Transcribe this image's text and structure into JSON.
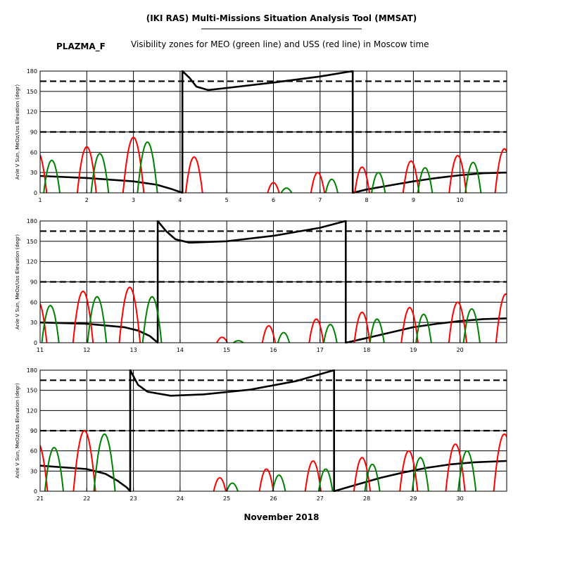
{
  "header": {
    "title": "(IKI RAS) Multi-Missions Situation Analysis Tool (MMSAT)",
    "subtitle": "Visibility zones for MEO (green line) and USS (red line) in Moscow time",
    "mission": "PLAZMA_F",
    "footer": "November 2018"
  },
  "colors": {
    "meo": "#008000",
    "uss": "#ff0000",
    "angle": "#000000",
    "grid": "#000000",
    "background": "#ffffff"
  },
  "chart_data": [
    {
      "type": "line",
      "ylabel": "Anle V Sun, MeOz/Uss Elevation (degr)",
      "xlim": [
        1,
        11
      ],
      "ylim": [
        0,
        180
      ],
      "x_ticks": [
        1,
        2,
        3,
        4,
        5,
        6,
        7,
        8,
        9,
        10
      ],
      "y_ticks": [
        0,
        30,
        60,
        90,
        120,
        150,
        180
      ],
      "reference_lines": [
        90,
        165
      ],
      "series": [
        {
          "key": "angle",
          "color": "#000000",
          "x": [
            1.0,
            2.0,
            3.0,
            3.5,
            3.8,
            4.05,
            4.05,
            4.2,
            4.35,
            4.6,
            5.0,
            6.0,
            7.0,
            7.7,
            7.7,
            8.0,
            8.5,
            9.0,
            9.5,
            10.0,
            10.5,
            11.0
          ],
          "y": [
            25,
            22,
            17,
            12,
            6,
            0,
            180,
            170,
            157,
            152,
            155,
            163,
            172,
            180,
            0,
            5,
            11,
            17,
            22,
            26,
            29,
            30
          ]
        },
        {
          "key": "uss",
          "color": "#ff0000",
          "peaks": [
            [
              0.95,
              60
            ],
            [
              2.0,
              68
            ],
            [
              3.0,
              82
            ],
            [
              4.3,
              53
            ],
            [
              6.0,
              15
            ],
            [
              6.95,
              30
            ],
            [
              7.9,
              38
            ],
            [
              8.95,
              47
            ],
            [
              9.95,
              55
            ],
            [
              10.95,
              65
            ]
          ]
        },
        {
          "key": "meo",
          "color": "#008000",
          "peaks": [
            [
              1.25,
              48
            ],
            [
              2.28,
              58
            ],
            [
              3.3,
              75
            ],
            [
              6.28,
              7
            ],
            [
              7.25,
              20
            ],
            [
              8.25,
              30
            ],
            [
              9.25,
              37
            ],
            [
              10.28,
              45
            ]
          ]
        }
      ]
    },
    {
      "type": "line",
      "ylabel": "Anle V Sun, MeOz/Uss Elevation (degr)",
      "xlim": [
        11,
        21
      ],
      "ylim": [
        0,
        180
      ],
      "x_ticks": [
        11,
        12,
        13,
        14,
        15,
        16,
        17,
        18,
        19,
        20
      ],
      "y_ticks": [
        0,
        30,
        60,
        90,
        120,
        150,
        180
      ],
      "reference_lines": [
        90,
        165
      ],
      "series": [
        {
          "key": "angle",
          "color": "#000000",
          "x": [
            11.0,
            12.0,
            12.8,
            13.1,
            13.35,
            13.52,
            13.52,
            13.7,
            13.9,
            14.2,
            15.0,
            16.0,
            17.0,
            17.55,
            17.55,
            18.0,
            18.5,
            19.0,
            19.5,
            20.0,
            20.5,
            21.0
          ],
          "y": [
            30,
            28,
            23,
            18,
            10,
            0,
            180,
            165,
            153,
            148,
            150,
            158,
            170,
            180,
            0,
            7,
            15,
            23,
            28,
            32,
            35,
            36
          ]
        },
        {
          "key": "uss",
          "color": "#ff0000",
          "peaks": [
            [
              10.95,
              62
            ],
            [
              11.92,
              76
            ],
            [
              12.92,
              82
            ],
            [
              14.9,
              8
            ],
            [
              15.9,
              25
            ],
            [
              16.92,
              35
            ],
            [
              17.9,
              45
            ],
            [
              18.92,
              52
            ],
            [
              19.95,
              60
            ],
            [
              20.98,
              72
            ]
          ]
        },
        {
          "key": "meo",
          "color": "#008000",
          "peaks": [
            [
              11.22,
              55
            ],
            [
              12.22,
              68
            ],
            [
              13.4,
              68
            ],
            [
              15.25,
              3
            ],
            [
              16.22,
              15
            ],
            [
              17.22,
              27
            ],
            [
              18.22,
              35
            ],
            [
              19.22,
              42
            ],
            [
              20.25,
              50
            ]
          ]
        }
      ]
    },
    {
      "type": "line",
      "ylabel": "Anle V Sun, MeOz/Uss Elevation (degr)",
      "xlim": [
        21,
        31
      ],
      "ylim": [
        0,
        180
      ],
      "x_ticks": [
        21,
        22,
        23,
        24,
        25,
        26,
        27,
        28,
        29,
        30
      ],
      "y_ticks": [
        0,
        30,
        60,
        90,
        120,
        150,
        180
      ],
      "reference_lines": [
        90,
        165
      ],
      "series": [
        {
          "key": "angle",
          "color": "#000000",
          "x": [
            21.0,
            22.0,
            22.4,
            22.65,
            22.85,
            22.93,
            22.93,
            23.1,
            23.3,
            23.8,
            24.5,
            25.5,
            26.5,
            27.3,
            27.3,
            27.8,
            28.3,
            28.8,
            29.3,
            29.8,
            30.3,
            31.0
          ],
          "y": [
            38,
            33,
            26,
            16,
            6,
            0,
            180,
            158,
            148,
            142,
            144,
            151,
            164,
            180,
            0,
            10,
            20,
            28,
            35,
            40,
            43,
            45
          ]
        },
        {
          "key": "uss",
          "color": "#ff0000",
          "peaks": [
            [
              20.95,
              72
            ],
            [
              21.95,
              90
            ],
            [
              24.85,
              20
            ],
            [
              25.85,
              33
            ],
            [
              26.85,
              45
            ],
            [
              27.9,
              50
            ],
            [
              28.9,
              60
            ],
            [
              29.9,
              70
            ],
            [
              30.95,
              85
            ]
          ]
        },
        {
          "key": "meo",
          "color": "#008000",
          "peaks": [
            [
              21.3,
              65
            ],
            [
              22.38,
              85
            ],
            [
              25.12,
              12
            ],
            [
              26.12,
              24
            ],
            [
              27.12,
              33
            ],
            [
              28.12,
              40
            ],
            [
              29.15,
              50
            ],
            [
              30.15,
              60
            ]
          ]
        }
      ]
    }
  ]
}
